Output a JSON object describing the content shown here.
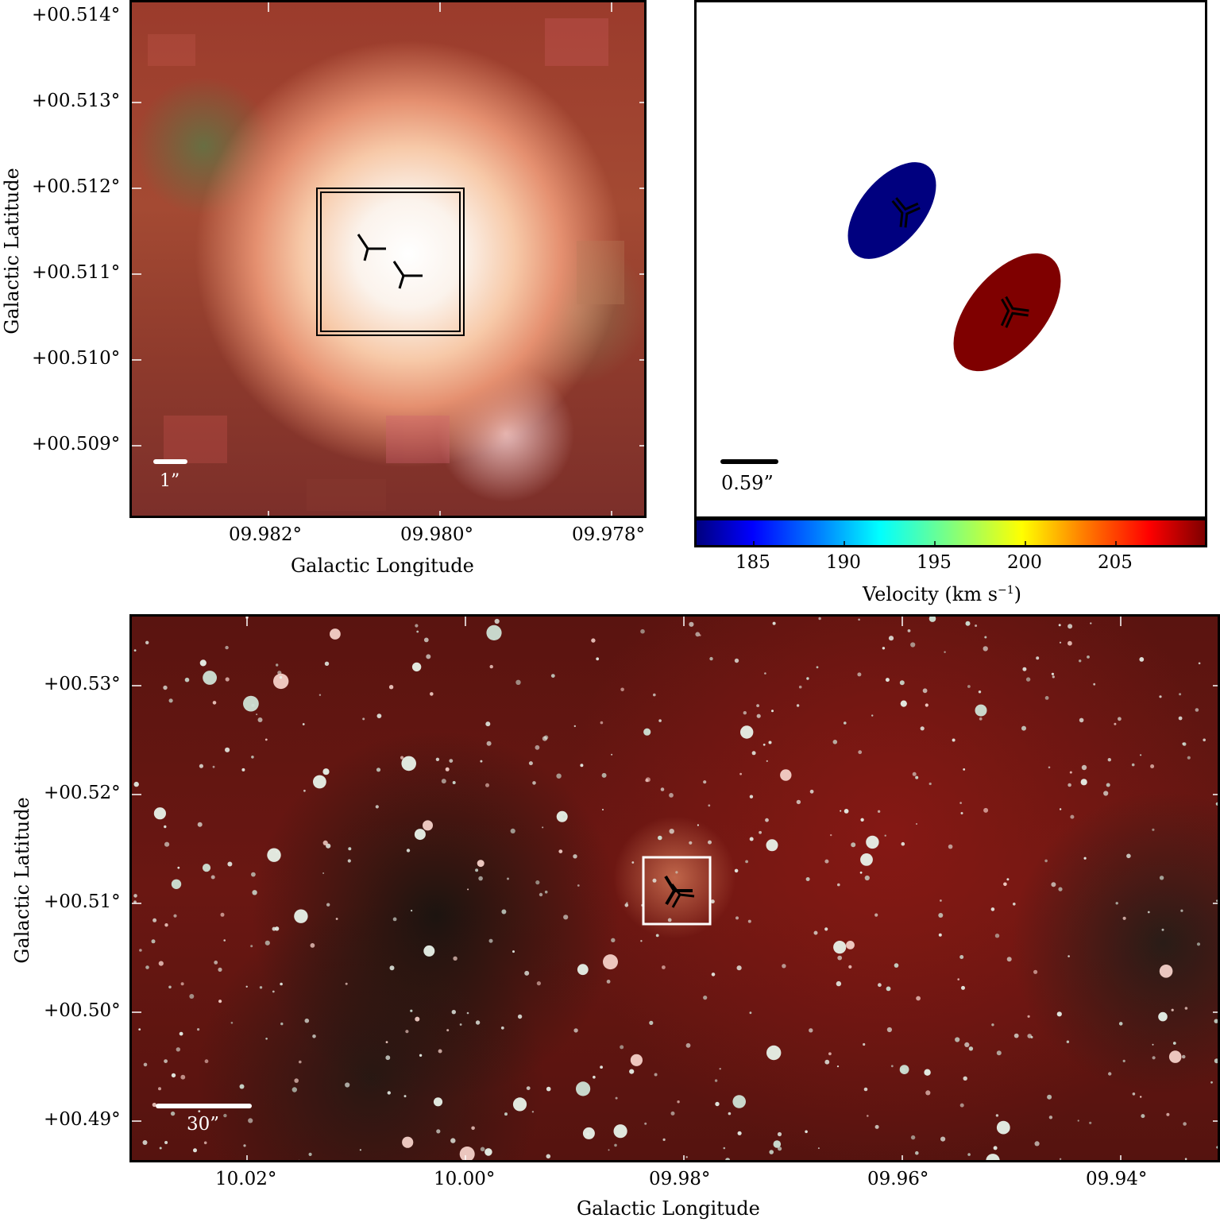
{
  "top_left": {
    "y_ticks": [
      "+00.514°",
      "+00.513°",
      "+00.512°",
      "+00.511°",
      "+00.510°",
      "+00.509°"
    ],
    "x_ticks": [
      "09.982°",
      "09.980°",
      "09.978°"
    ],
    "xlabel": "Galactic Longitude",
    "ylabel": "Galactic Latitude",
    "scalebar": "1”"
  },
  "top_right": {
    "scalebar": "0.59”",
    "colors": {
      "blue_component": "#00007f",
      "red_component": "#7f0000"
    }
  },
  "colorbar": {
    "ticks": [
      "185",
      "190",
      "195",
      "200",
      "205"
    ],
    "label": "Velocity (km s",
    "label_sup": "−1",
    "label_close": ")"
  },
  "bottom": {
    "y_ticks": [
      "+00.53°",
      "+00.52°",
      "+00.51°",
      "+00.50°",
      "+00.49°"
    ],
    "x_ticks": [
      "10.02°",
      "10.00°",
      "09.98°",
      "09.96°",
      "09.94°"
    ],
    "xlabel": "Galactic Longitude",
    "ylabel": "Galactic Latitude",
    "scalebar": "30”"
  }
}
